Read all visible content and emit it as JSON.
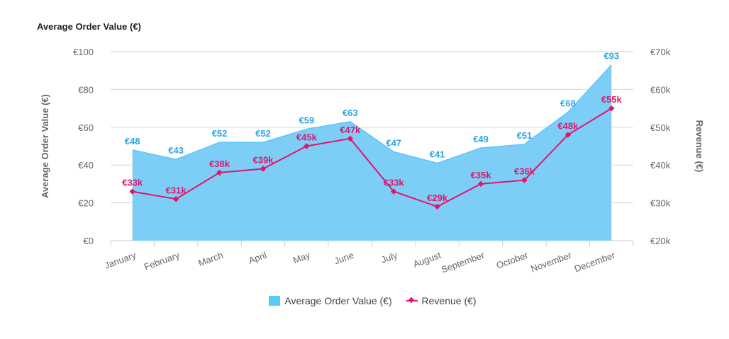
{
  "chart_data": {
    "type": "area",
    "title": "Average Order Value (€)",
    "categories": [
      "January",
      "February",
      "March",
      "April",
      "May",
      "June",
      "July",
      "August",
      "September",
      "October",
      "November",
      "December"
    ],
    "series": [
      {
        "name": "Average Order Value (€)",
        "type": "area",
        "axis": "left",
        "color": "#5AC8FA",
        "values": [
          48,
          43,
          52,
          52,
          59,
          63,
          47,
          41,
          49,
          51,
          68,
          93
        ],
        "labels": [
          "€48",
          "€43",
          "€52",
          "€52",
          "€59",
          "€63",
          "€47",
          "€41",
          "€49",
          "€51",
          "€68",
          "€93"
        ]
      },
      {
        "name": "Revenue (€)",
        "type": "line",
        "axis": "right",
        "color": "#E0156E",
        "values": [
          33,
          31,
          38,
          39,
          45,
          47,
          33,
          29,
          35,
          36,
          48,
          55
        ],
        "labels": [
          "€33k",
          "€31k",
          "€38k",
          "€39k",
          "€45k",
          "€47k",
          "€33k",
          "€29k",
          "€35k",
          "€36k",
          "€48k",
          "€55k"
        ]
      }
    ],
    "y_left": {
      "label": "Average Order Value (€)",
      "range": [
        0,
        100
      ],
      "ticks": [
        "€0",
        "€20",
        "€40",
        "€60",
        "€80",
        "€100"
      ]
    },
    "y_right": {
      "label": "Revenue (€)",
      "range": [
        20,
        70
      ],
      "unit": "thousands",
      "ticks": [
        "€20k",
        "€30k",
        "€40k",
        "€50k",
        "€60k",
        "€70k"
      ]
    },
    "grid": true,
    "legend_position": "bottom-center",
    "label_colors": {
      "area": "#2CA5E0",
      "line": "#E0156E"
    }
  }
}
